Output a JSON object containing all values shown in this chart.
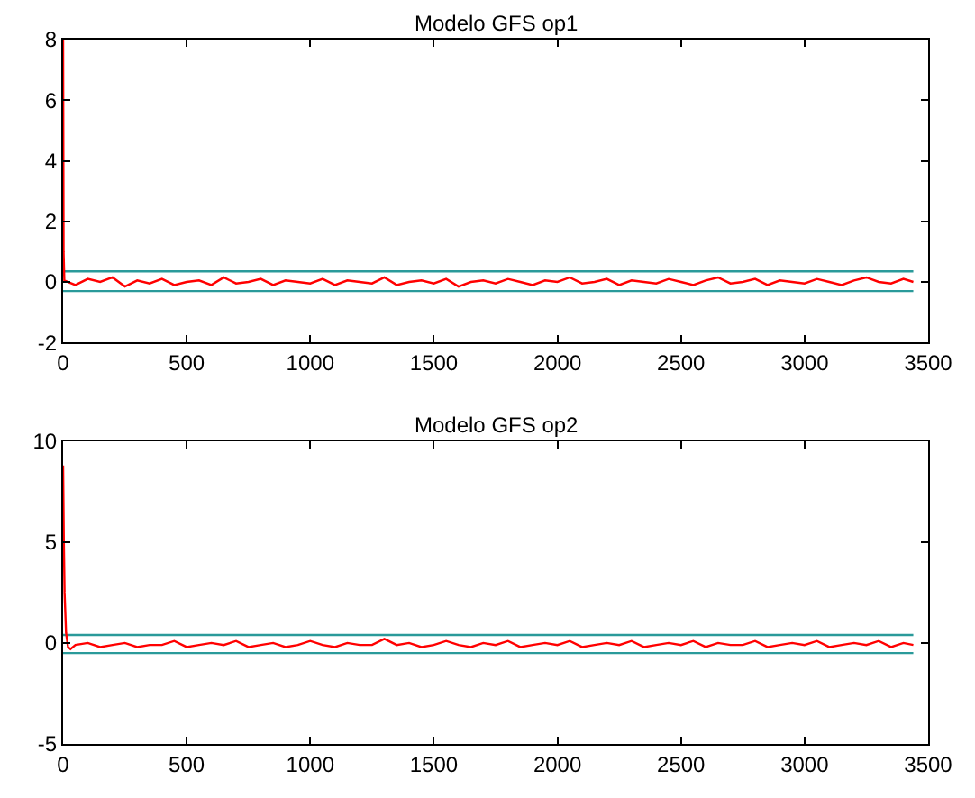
{
  "chart_data": [
    {
      "type": "line",
      "title": "Modelo GFS op1",
      "xlim": [
        0,
        3500
      ],
      "ylim": [
        -2,
        8
      ],
      "xticks": [
        0,
        500,
        1000,
        1500,
        2000,
        2500,
        3000,
        3500
      ],
      "yticks": [
        -2,
        0,
        2,
        4,
        6,
        8
      ],
      "marker": "none",
      "line_style": "solid",
      "series": [
        {
          "color": "#2a9a9a",
          "x": [
            0,
            3440
          ],
          "values": [
            0.35,
            0.35
          ]
        },
        {
          "color": "#2a9a9a",
          "x": [
            0,
            3440
          ],
          "values": [
            -0.3,
            -0.3
          ]
        },
        {
          "color": "#ff0000",
          "x": [
            0,
            2,
            5,
            50,
            100,
            150,
            200,
            250,
            300,
            350,
            400,
            450,
            500,
            550,
            600,
            650,
            700,
            750,
            800,
            850,
            900,
            950,
            1000,
            1050,
            1100,
            1150,
            1200,
            1250,
            1300,
            1350,
            1400,
            1450,
            1500,
            1550,
            1600,
            1650,
            1700,
            1750,
            1800,
            1850,
            1900,
            1950,
            2000,
            2050,
            2100,
            2150,
            2200,
            2250,
            2300,
            2350,
            2400,
            2450,
            2500,
            2550,
            2600,
            2650,
            2700,
            2750,
            2800,
            2850,
            2900,
            2950,
            3000,
            3050,
            3100,
            3150,
            3200,
            3250,
            3300,
            3350,
            3400,
            3440
          ],
          "values": [
            8,
            1,
            0.05,
            -0.1,
            0.1,
            0.0,
            0.15,
            -0.15,
            0.05,
            -0.05,
            0.1,
            -0.1,
            0.0,
            0.05,
            -0.1,
            0.15,
            -0.05,
            0.0,
            0.1,
            -0.1,
            0.05,
            0.0,
            -0.05,
            0.1,
            -0.1,
            0.05,
            0.0,
            -0.05,
            0.15,
            -0.1,
            0.0,
            0.05,
            -0.05,
            0.1,
            -0.15,
            0.0,
            0.05,
            -0.05,
            0.1,
            0.0,
            -0.1,
            0.05,
            0.0,
            0.15,
            -0.05,
            0.0,
            0.1,
            -0.1,
            0.05,
            0.0,
            -0.05,
            0.1,
            0.0,
            -0.1,
            0.05,
            0.15,
            -0.05,
            0.0,
            0.1,
            -0.1,
            0.05,
            0.0,
            -0.05,
            0.1,
            0.0,
            -0.1,
            0.05,
            0.15,
            0.0,
            -0.05,
            0.1,
            0.0
          ]
        }
      ]
    },
    {
      "type": "line",
      "title": "Modelo GFS op2",
      "xlim": [
        0,
        3500
      ],
      "ylim": [
        -5,
        10
      ],
      "xticks": [
        0,
        500,
        1000,
        1500,
        2000,
        2500,
        3000,
        3500
      ],
      "yticks": [
        -5,
        0,
        5,
        10
      ],
      "marker": "none",
      "line_style": "solid",
      "series": [
        {
          "color": "#2a9a9a",
          "x": [
            0,
            3440
          ],
          "values": [
            0.4,
            0.4
          ]
        },
        {
          "color": "#2a9a9a",
          "x": [
            0,
            3440
          ],
          "values": [
            -0.5,
            -0.5
          ]
        },
        {
          "color": "#ff0000",
          "x": [
            0,
            3,
            6,
            12,
            20,
            30,
            50,
            100,
            150,
            200,
            250,
            300,
            350,
            400,
            450,
            500,
            550,
            600,
            650,
            700,
            750,
            800,
            850,
            900,
            950,
            1000,
            1050,
            1100,
            1150,
            1200,
            1250,
            1300,
            1350,
            1400,
            1450,
            1500,
            1550,
            1600,
            1650,
            1700,
            1750,
            1800,
            1850,
            1900,
            1950,
            2000,
            2050,
            2100,
            2150,
            2200,
            2250,
            2300,
            2350,
            2400,
            2450,
            2500,
            2550,
            2600,
            2650,
            2700,
            2750,
            2800,
            2850,
            2900,
            2950,
            3000,
            3050,
            3100,
            3150,
            3200,
            3250,
            3300,
            3350,
            3400,
            3440
          ],
          "values": [
            8.8,
            5,
            2.5,
            0.5,
            -0.2,
            -0.3,
            -0.1,
            0.0,
            -0.2,
            -0.1,
            0.0,
            -0.2,
            -0.1,
            -0.1,
            0.1,
            -0.2,
            -0.1,
            0.0,
            -0.1,
            0.1,
            -0.2,
            -0.1,
            0.0,
            -0.2,
            -0.1,
            0.1,
            -0.1,
            -0.2,
            0.0,
            -0.1,
            -0.1,
            0.2,
            -0.1,
            0.0,
            -0.2,
            -0.1,
            0.1,
            -0.1,
            -0.2,
            0.0,
            -0.1,
            0.1,
            -0.2,
            -0.1,
            0.0,
            -0.1,
            0.1,
            -0.2,
            -0.1,
            0.0,
            -0.1,
            0.1,
            -0.2,
            -0.1,
            0.0,
            -0.1,
            0.1,
            -0.2,
            0.0,
            -0.1,
            -0.1,
            0.1,
            -0.2,
            -0.1,
            0.0,
            -0.1,
            0.1,
            -0.2,
            -0.1,
            0.0,
            -0.1,
            0.1,
            -0.2,
            0.0,
            -0.1
          ]
        }
      ]
    }
  ]
}
